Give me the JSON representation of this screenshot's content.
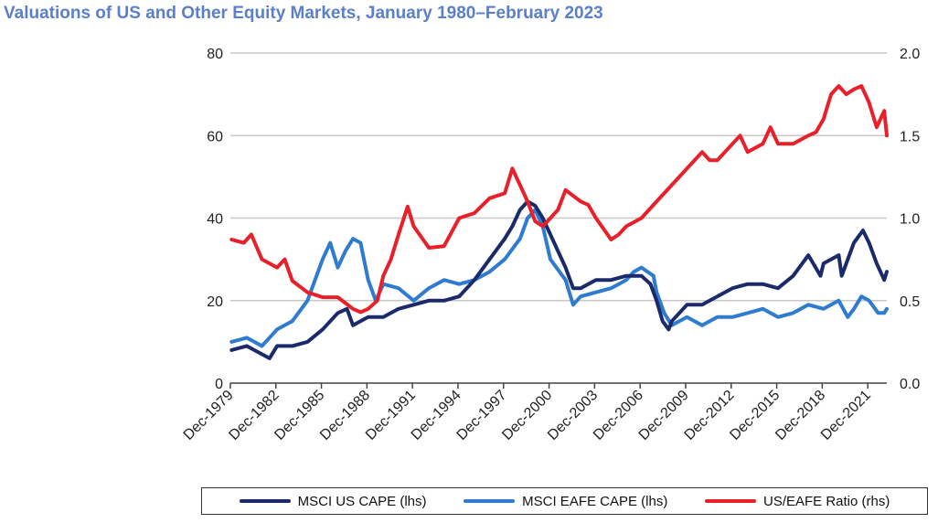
{
  "chart_data": {
    "type": "line",
    "title": "Valuations of US and Other Equity Markets, January 1980–February 2023",
    "x_tick_labels": [
      "Dec-1979",
      "Dec-1982",
      "Dec-1985",
      "Dec-1988",
      "Dec-1991",
      "Dec-1994",
      "Dec-1997",
      "Dec-2000",
      "Dec-2003",
      "Dec-2006",
      "Dec-2009",
      "Dec-2012",
      "Dec-2015",
      "Dec-2018",
      "Dec-2021"
    ],
    "xlim": [
      1979.92,
      2023.17
    ],
    "y_left": {
      "ticks": [
        "0",
        "20",
        "40",
        "60",
        "80"
      ],
      "lim": [
        0,
        80
      ]
    },
    "y_right": {
      "ticks": [
        "0.0",
        "0.5",
        "1.0",
        "1.5",
        "2.0"
      ],
      "lim": [
        0,
        2.0
      ]
    },
    "grid": true,
    "legend_position": "bottom",
    "series": [
      {
        "name": "MSCI US CAPE (lhs)",
        "axis": "left",
        "color": "#1b2a6b",
        "x": [
          1980,
          1981,
          1982,
          1982.5,
          1983,
          1984,
          1985,
          1986,
          1986.5,
          1987,
          1987.6,
          1988,
          1989,
          1990,
          1991,
          1992,
          1993,
          1994,
          1995,
          1996,
          1997,
          1998,
          1998.5,
          1999,
          1999.5,
          2000,
          2000.5,
          2001,
          2002,
          2002.5,
          2003,
          2004,
          2005,
          2006,
          2007,
          2007.6,
          2008,
          2008.4,
          2008.8,
          2009,
          2009.5,
          2010,
          2011,
          2012,
          2013,
          2014,
          2015,
          2016,
          2017,
          2018,
          2018.8,
          2019,
          2020,
          2020.2,
          2020.5,
          2021,
          2021.6,
          2022,
          2022.5,
          2023,
          2023.17
        ],
        "y": [
          8,
          9,
          7,
          6,
          9,
          9,
          10,
          13,
          15,
          17,
          18,
          14,
          16,
          16,
          18,
          19,
          20,
          20,
          21,
          25,
          30,
          35,
          38,
          42,
          44,
          43,
          40,
          36,
          28,
          23,
          23,
          25,
          25,
          26,
          26,
          24,
          20,
          15,
          13,
          15,
          17,
          19,
          19,
          21,
          23,
          24,
          24,
          23,
          26,
          31,
          26,
          29,
          31,
          26,
          29,
          34,
          37,
          34,
          29,
          25,
          27
        ]
      },
      {
        "name": "MSCI EAFE CAPE (lhs)",
        "axis": "left",
        "color": "#2e7bd0",
        "x": [
          1980,
          1981,
          1982,
          1983,
          1984,
          1985,
          1986,
          1986.5,
          1987,
          1987.5,
          1988,
          1988.5,
          1989,
          1989.5,
          1990,
          1991,
          1992,
          1993,
          1994,
          1995,
          1996,
          1997,
          1998,
          1999,
          1999.5,
          2000,
          2000.5,
          2001,
          2002,
          2002.5,
          2003,
          2004,
          2005,
          2006,
          2006.5,
          2007,
          2007.8,
          2008,
          2008.5,
          2009,
          2010,
          2011,
          2012,
          2013,
          2014,
          2015,
          2016,
          2017,
          2018,
          2019,
          2020,
          2020.6,
          2021,
          2021.5,
          2022,
          2022.6,
          2023,
          2023.17
        ],
        "y": [
          10,
          11,
          9,
          13,
          15,
          20,
          30,
          34,
          28,
          32,
          35,
          34,
          25,
          20,
          24,
          23,
          20,
          23,
          25,
          24,
          25,
          27,
          30,
          35,
          40,
          42,
          38,
          30,
          25,
          19,
          21,
          22,
          23,
          25,
          27,
          28,
          26,
          22,
          17,
          14,
          16,
          14,
          16,
          16,
          17,
          18,
          16,
          17,
          19,
          18,
          20,
          16,
          18,
          21,
          20,
          17,
          17,
          18
        ]
      },
      {
        "name": "US/EAFE Ratio (rhs)",
        "axis": "right",
        "color": "#e8202a",
        "x": [
          1980,
          1980.8,
          1981.3,
          1982,
          1983,
          1983.5,
          1984,
          1985,
          1986,
          1987,
          1988,
          1988.5,
          1989,
          1989.6,
          1990,
          1990.5,
          1991,
          1991.6,
          1992,
          1993,
          1994,
          1995,
          1996,
          1997,
          1998,
          1998.5,
          1999,
          1999.5,
          2000,
          2000.5,
          2001,
          2001.5,
          2002,
          2003,
          2003.5,
          2004,
          2005,
          2005.5,
          2006,
          2007,
          2008,
          2009,
          2010,
          2011,
          2011.5,
          2012,
          2013,
          2013.5,
          2014,
          2015,
          2015.5,
          2016,
          2017,
          2018,
          2018.5,
          2019,
          2019.5,
          2020,
          2020.5,
          2021,
          2021.5,
          2022,
          2022.5,
          2023,
          2023.17
        ],
        "y": [
          0.87,
          0.85,
          0.9,
          0.75,
          0.7,
          0.75,
          0.62,
          0.55,
          0.52,
          0.52,
          0.45,
          0.43,
          0.45,
          0.5,
          0.65,
          0.75,
          0.9,
          1.07,
          0.95,
          0.82,
          0.83,
          1.0,
          1.03,
          1.12,
          1.15,
          1.3,
          1.2,
          1.1,
          0.98,
          0.95,
          1.0,
          1.05,
          1.17,
          1.1,
          1.08,
          1.0,
          0.87,
          0.9,
          0.95,
          1.0,
          1.1,
          1.2,
          1.3,
          1.4,
          1.35,
          1.35,
          1.45,
          1.5,
          1.4,
          1.45,
          1.55,
          1.45,
          1.45,
          1.5,
          1.52,
          1.6,
          1.75,
          1.8,
          1.75,
          1.78,
          1.8,
          1.7,
          1.55,
          1.65,
          1.5
        ]
      }
    ]
  }
}
